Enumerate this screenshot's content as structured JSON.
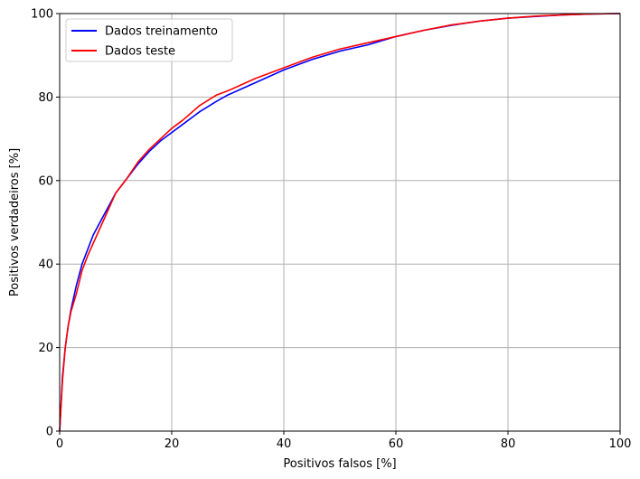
{
  "chart_data": {
    "type": "line",
    "title": "",
    "xlabel": "Positivos falsos [%]",
    "ylabel": "Positivos verdadeiros [%]",
    "xlim": [
      0,
      100
    ],
    "ylim": [
      0,
      100
    ],
    "xticks": [
      "0",
      "20",
      "40",
      "60",
      "80",
      "100"
    ],
    "yticks": [
      "0",
      "20",
      "40",
      "60",
      "80",
      "100"
    ],
    "grid": true,
    "legend_position": "top-left",
    "series": [
      {
        "name": "Dados treinamento",
        "color": "#0000ff",
        "x": [
          0,
          0.5,
          1,
          1.5,
          2,
          3,
          4,
          5,
          6,
          7,
          8,
          9,
          10,
          12,
          14,
          16,
          18,
          20,
          22,
          25,
          28,
          30,
          35,
          40,
          45,
          50,
          55,
          60,
          65,
          70,
          75,
          80,
          85,
          90,
          95,
          100
        ],
        "y": [
          0,
          13,
          20,
          25,
          29,
          35,
          40,
          43.5,
          47,
          49.5,
          52,
          54.5,
          57,
          60.5,
          64,
          67,
          69.5,
          71.5,
          73.5,
          76.5,
          79,
          80.5,
          83.5,
          86.5,
          89,
          91,
          92.5,
          94.5,
          96,
          97.2,
          98.2,
          98.9,
          99.3,
          99.7,
          99.9,
          100
        ]
      },
      {
        "name": "Dados teste",
        "color": "#ff0000",
        "x": [
          0,
          0.5,
          1,
          1.5,
          2,
          3,
          4,
          5,
          6,
          7,
          8,
          9,
          10,
          12,
          14,
          16,
          18,
          20,
          22,
          25,
          28,
          30,
          35,
          40,
          45,
          50,
          55,
          60,
          65,
          70,
          75,
          80,
          85,
          90,
          95,
          100
        ],
        "y": [
          0,
          12,
          20,
          25,
          28.5,
          33,
          38.5,
          42,
          45,
          48,
          51,
          54,
          57,
          60.5,
          64.5,
          67.5,
          70,
          72.5,
          74.5,
          78,
          80.5,
          81.5,
          84.5,
          87,
          89.5,
          91.5,
          93,
          94.5,
          96,
          97.3,
          98.2,
          98.9,
          99.4,
          99.7,
          99.9,
          100
        ]
      }
    ]
  }
}
